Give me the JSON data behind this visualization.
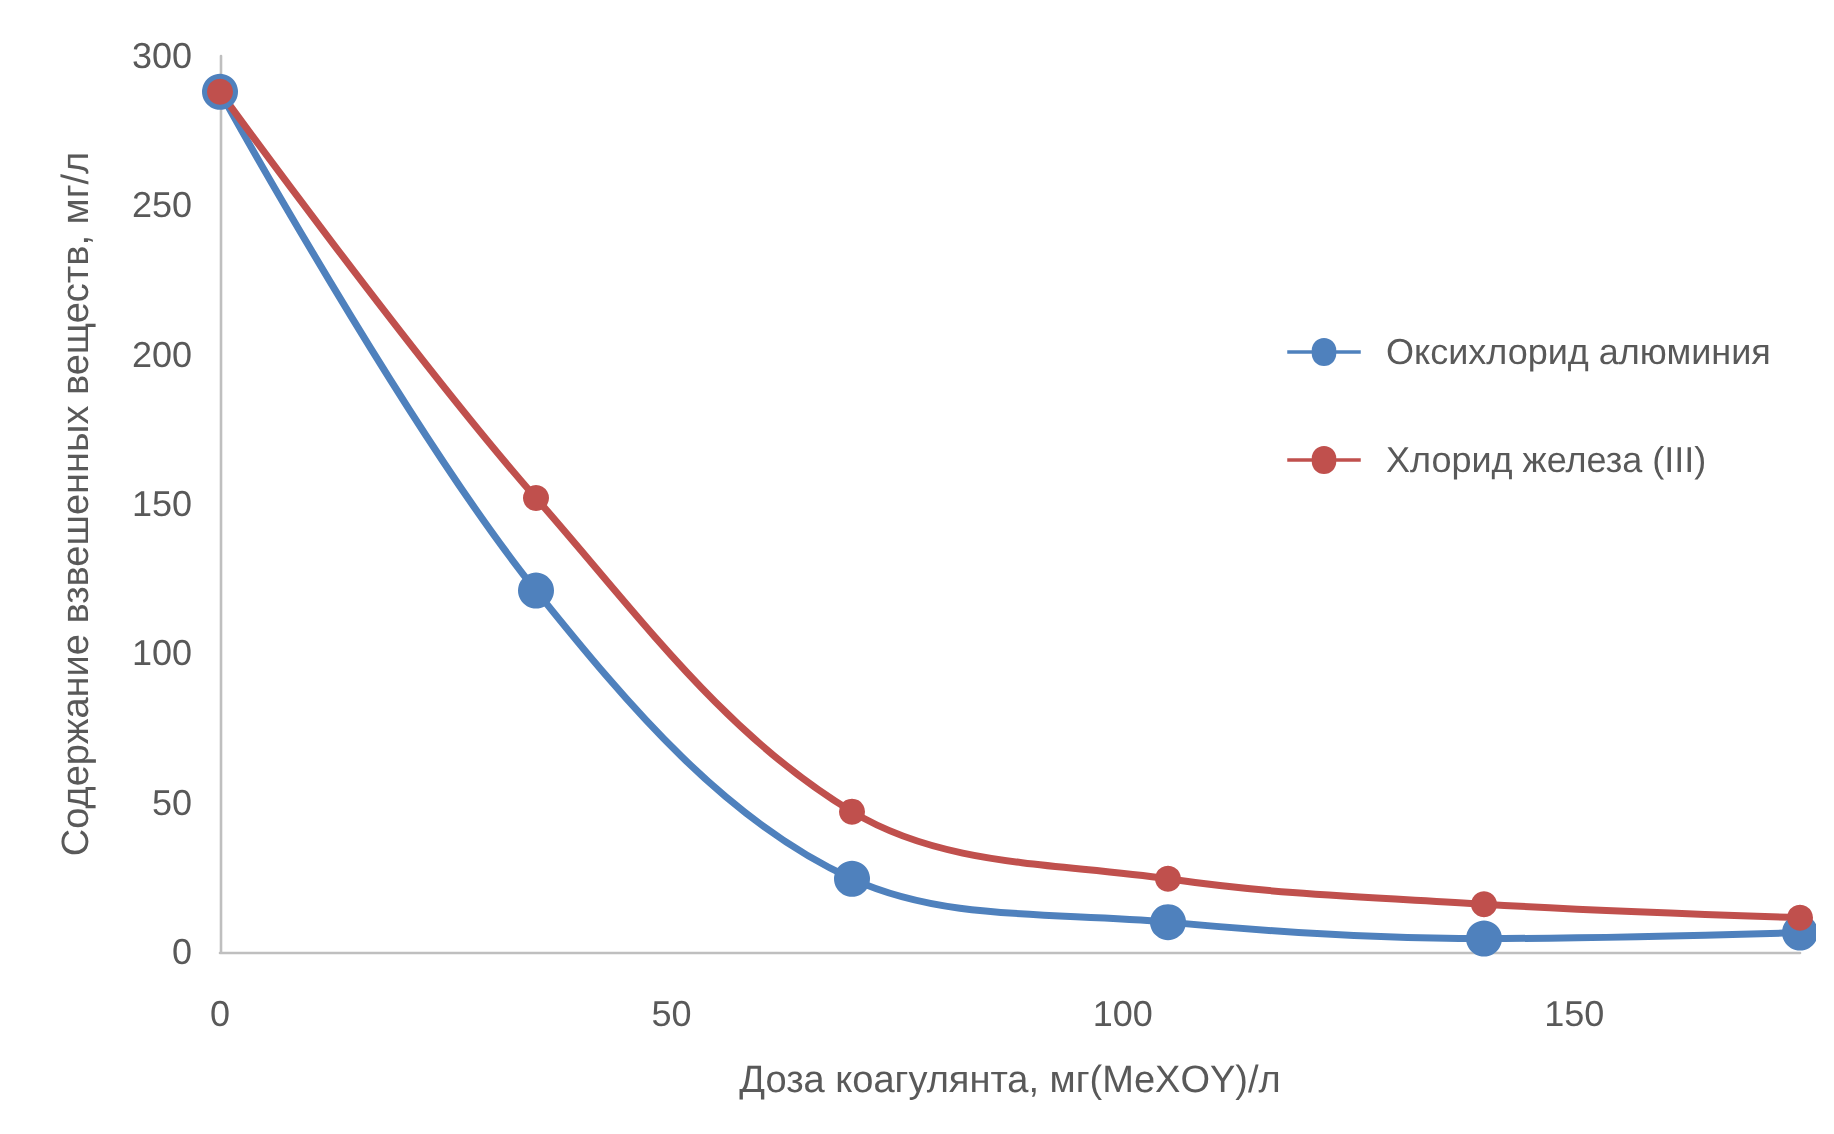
{
  "chart_data": {
    "type": "line",
    "xlabel": "Доза коагулянта, мг(MeXOY)/л",
    "ylabel": "Содержание взвешенных веществ, мг/л",
    "x": [
      0,
      35,
      70,
      105,
      140,
      175
    ],
    "series": [
      {
        "name": "Оксихлорид алюминия",
        "color": "#4f81bd",
        "values": [
          288,
          121,
          24.5,
          10,
          4.5,
          6.5
        ]
      },
      {
        "name": "Хлорид железа (III)",
        "color": "#c0504d",
        "values": [
          288,
          152,
          47,
          24.5,
          16,
          11.5
        ]
      }
    ],
    "xlim": [
      0,
      175
    ],
    "xticks": [
      0,
      50,
      100,
      150
    ],
    "ylim": [
      0,
      300
    ],
    "yticks": [
      0,
      50,
      100,
      150,
      200,
      250,
      300
    ],
    "grid": false,
    "legend": "right",
    "marker": "circle",
    "line_style": "solid"
  }
}
